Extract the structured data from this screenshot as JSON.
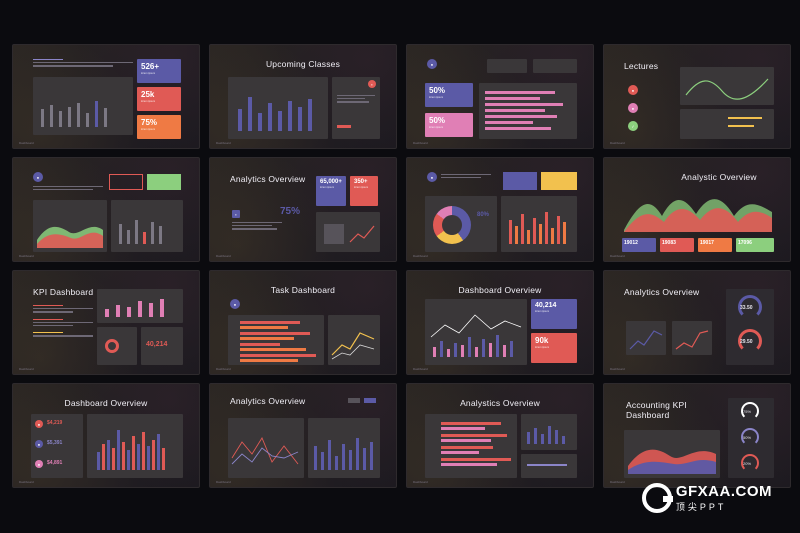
{
  "slides": [
    {
      "title": "",
      "cards": [
        "526+",
        "25k",
        "75%"
      ]
    },
    {
      "title": "Upcoming Classes"
    },
    {
      "title": "",
      "cards": [
        "50%",
        "50%"
      ]
    },
    {
      "title": "Lectures"
    },
    {
      "title": ""
    },
    {
      "title": "Analytics Overview",
      "cards": [
        "65,000+",
        "350+",
        "75%"
      ]
    },
    {
      "title": "",
      "cards": [
        "80%"
      ]
    },
    {
      "title": "Analystic Overview",
      "cards": [
        "19012",
        "19083",
        "19017",
        "17096"
      ]
    },
    {
      "title": "KPI Dashboard",
      "cards": [
        "40,214"
      ]
    },
    {
      "title": "Task Dashboard"
    },
    {
      "title": "Dashboard Overview",
      "cards": [
        "40,214",
        "90k"
      ]
    },
    {
      "title": "Analytics Overview",
      "cards": [
        "33.50",
        "29.50"
      ]
    },
    {
      "title": "Dashboard Overview",
      "cards": [
        "$4,219",
        "$5,391",
        "$4,891"
      ]
    },
    {
      "title": "Analytics Overview"
    },
    {
      "title": "Analystics Overview"
    },
    {
      "title": "Accounting KPI Dashboard",
      "cards": [
        "75%",
        "50%",
        "20%"
      ]
    }
  ],
  "footer_text": "Dashboard",
  "watermark": {
    "main": "GFXAA.COM",
    "sub": "顶尖PPT"
  },
  "colors": {
    "background": "#0b0b0f",
    "purple": "#5b5aa6",
    "red": "#e05a55",
    "orange": "#ef7a44",
    "pink": "#e07fb5",
    "yellow": "#f2c14e",
    "green": "#8ccf7e"
  }
}
